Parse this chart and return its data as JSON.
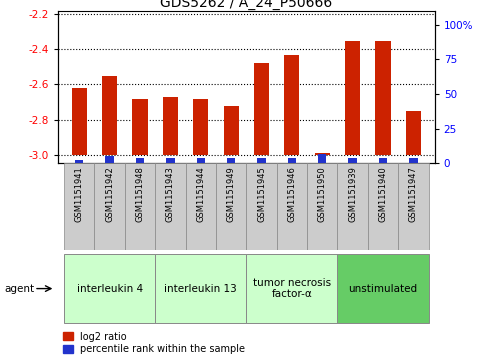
{
  "title": "GDS5262 / A_24_P50666",
  "samples": [
    "GSM1151941",
    "GSM1151942",
    "GSM1151948",
    "GSM1151943",
    "GSM1151944",
    "GSM1151949",
    "GSM1151945",
    "GSM1151946",
    "GSM1151950",
    "GSM1151939",
    "GSM1151940",
    "GSM1151947"
  ],
  "log2_ratio": [
    -2.62,
    -2.55,
    -2.68,
    -2.67,
    -2.68,
    -2.72,
    -2.48,
    -2.43,
    -2.99,
    -2.35,
    -2.35,
    -2.75
  ],
  "percentile": [
    2.5,
    5.0,
    3.5,
    3.5,
    3.5,
    3.5,
    3.5,
    3.5,
    7.0,
    4.0,
    4.0,
    3.5
  ],
  "ylim_left": [
    -3.05,
    -2.18
  ],
  "ylim_right": [
    0,
    110
  ],
  "yticks_left": [
    -3.0,
    -2.8,
    -2.6,
    -2.4,
    -2.2
  ],
  "yticks_right": [
    0,
    25,
    50,
    75,
    100
  ],
  "yticklabels_right": [
    "0",
    "25",
    "50",
    "75",
    "100%"
  ],
  "agents": [
    {
      "label": "interleukin 4",
      "start": 0,
      "end": 2,
      "color": "#ccffcc"
    },
    {
      "label": "interleukin 13",
      "start": 3,
      "end": 5,
      "color": "#ccffcc"
    },
    {
      "label": "tumor necrosis\nfactor-α",
      "start": 6,
      "end": 8,
      "color": "#ccffcc"
    },
    {
      "label": "unstimulated",
      "start": 9,
      "end": 11,
      "color": "#66cc66"
    }
  ],
  "bar_color_red": "#cc2200",
  "bar_color_blue": "#2233cc",
  "bar_width": 0.5,
  "baseline": -3.0,
  "legend_red": "log2 ratio",
  "legend_blue": "percentile rank within the sample",
  "title_fontsize": 10,
  "tick_fontsize": 7.5,
  "agent_label_fontsize": 7.5,
  "sample_area_color": "#cccccc",
  "agent_arrow_label": "agent"
}
